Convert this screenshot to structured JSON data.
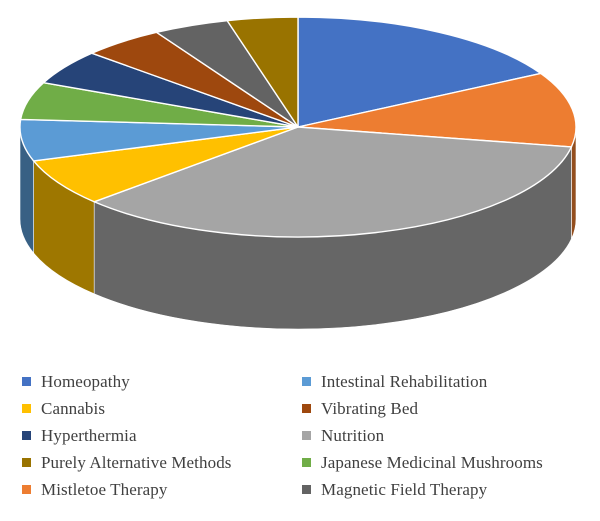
{
  "chart_data": {
    "type": "pie",
    "style": "3d",
    "legend_position": "bottom",
    "slices": [
      {
        "name": "Homeopathy",
        "value": 16.9,
        "color": "#4472C4"
      },
      {
        "name": "Mistletoe Therapy",
        "value": 11.0,
        "color": "#ED7D31"
      },
      {
        "name": "Nutrition",
        "value": 35.2,
        "color": "#A5A5A5"
      },
      {
        "name": "Cannabis",
        "value": 6.9,
        "color": "#FFC000"
      },
      {
        "name": "Intestinal Rehabilitation",
        "value": 6.1,
        "color": "#5B9BD5"
      },
      {
        "name": "Japanese Medicinal Mushrooms",
        "value": 5.5,
        "color": "#70AD47"
      },
      {
        "name": "Hyperthermia",
        "value": 5.1,
        "color": "#264478"
      },
      {
        "name": "Vibrating Bed",
        "value": 4.8,
        "color": "#9E480E"
      },
      {
        "name": "Magnetic Field Therapy",
        "value": 4.4,
        "color": "#636363"
      },
      {
        "name": "Purely Alternative Methods",
        "value": 4.1,
        "color": "#997300"
      }
    ],
    "legend": [
      {
        "name": "Homeopathy",
        "color": "#4472C4"
      },
      {
        "name": "Intestinal Rehabilitation",
        "color": "#5B9BD5"
      },
      {
        "name": "Cannabis",
        "color": "#FFC000"
      },
      {
        "name": "Vibrating Bed",
        "color": "#9E480E"
      },
      {
        "name": "Hyperthermia",
        "color": "#264478"
      },
      {
        "name": "Nutrition",
        "color": "#A5A5A5"
      },
      {
        "name": "Purely Alternative Methods",
        "color": "#997300"
      },
      {
        "name": "Japanese Medicinal Mushrooms",
        "color": "#70AD47"
      },
      {
        "name": "Mistletoe Therapy",
        "color": "#ED7D31"
      },
      {
        "name": "Magnetic Field Therapy",
        "color": "#636363"
      }
    ]
  }
}
